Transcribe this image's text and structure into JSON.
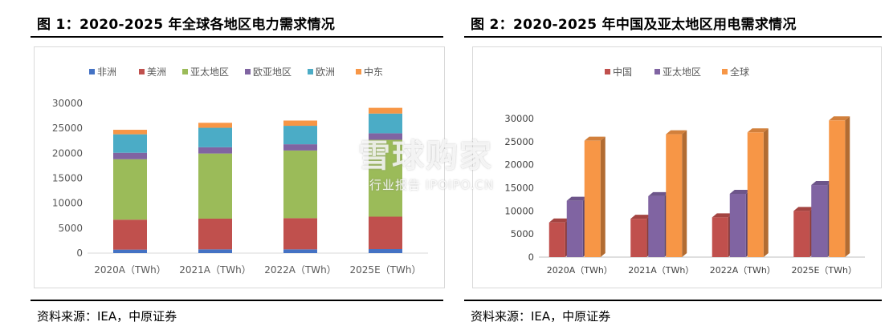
{
  "figure1": {
    "title": "图 1：2020-2025 年全球各地区电力需求情况",
    "source": "资料来源：IEA，中原证券"
  },
  "figure2": {
    "title": "图 2：2020-2025 年中国及亚太地区用电需求情况",
    "source": "资料来源：IEA，中原证券"
  },
  "watermark": {
    "main": "雪球购家",
    "sub": "行业报告 IPOIPO.CN"
  },
  "chart_data": [
    {
      "type": "bar",
      "stacked": true,
      "categories": [
        "2020A（TWh）",
        "2021A（TWh）",
        "2022A（TWh）",
        "2025E（TWh）"
      ],
      "series": [
        {
          "name": "非洲",
          "color": "#4472c4",
          "values": [
            700,
            750,
            750,
            800
          ]
        },
        {
          "name": "美洲",
          "color": "#c0504d",
          "values": [
            6000,
            6150,
            6250,
            6500
          ]
        },
        {
          "name": "亚太地区",
          "color": "#9bbb59",
          "values": [
            12100,
            13050,
            13550,
            15400
          ]
        },
        {
          "name": "欧亚地区",
          "color": "#8064a2",
          "values": [
            1300,
            1250,
            1250,
            1300
          ]
        },
        {
          "name": "欧洲",
          "color": "#4bacc6",
          "values": [
            3700,
            3900,
            3700,
            3950
          ]
        },
        {
          "name": "中东",
          "color": "#f79646",
          "values": [
            900,
            1000,
            1050,
            1150
          ]
        }
      ],
      "yticks": [
        0,
        5000,
        10000,
        15000,
        20000,
        25000,
        30000
      ],
      "ylim": [
        0,
        30000
      ],
      "legend_position": "top"
    },
    {
      "type": "bar",
      "style": "3d-clustered",
      "categories": [
        "2020A（TWh）",
        "2021A（TWh）",
        "2022A（TWh）",
        "2025E（TWh）"
      ],
      "series": [
        {
          "name": "中国",
          "color": "#c0504d",
          "values": [
            7500,
            8300,
            8600,
            10000
          ]
        },
        {
          "name": "亚太地区",
          "color": "#8064a2",
          "values": [
            12200,
            13200,
            13700,
            15600
          ]
        },
        {
          "name": "全球",
          "color": "#f79646",
          "values": [
            25200,
            26600,
            27000,
            29600
          ]
        }
      ],
      "yticks": [
        0,
        5000,
        10000,
        15000,
        20000,
        25000,
        30000
      ],
      "ylim": [
        0,
        30000
      ],
      "legend_position": "top"
    }
  ]
}
